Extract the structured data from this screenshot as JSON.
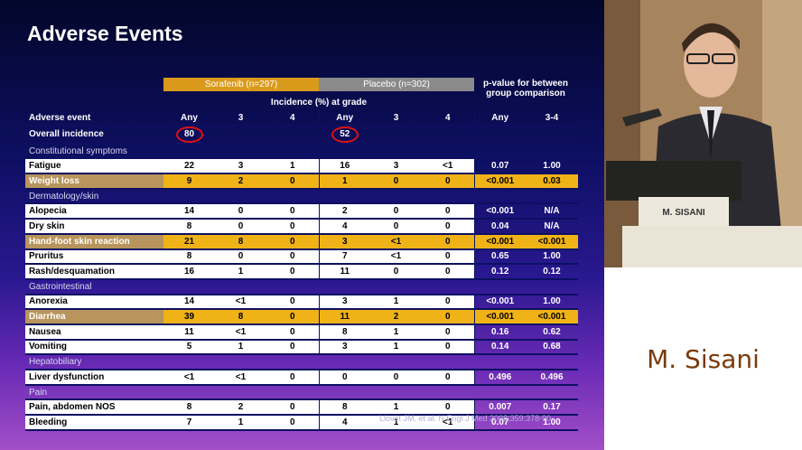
{
  "slide": {
    "title": "Adverse Events",
    "group_sorafenib": "Sorafenib (n=297)",
    "group_placebo": "Placebo (n=302)",
    "pvalue_header": "p-value for between group comparison",
    "incidence_header": "Incidence (%) at grade",
    "columns": [
      "Adverse event",
      "Any",
      "3",
      "4",
      "Any",
      "3",
      "4",
      "Any",
      "3-4"
    ],
    "overall": {
      "label": "Overall incidence",
      "sorafenib_any": "80",
      "placebo_any": "52"
    },
    "rows": [
      {
        "type": "section",
        "label": "Constitutional symptoms"
      },
      {
        "type": "row",
        "highlight": false,
        "cells": [
          "Fatigue",
          "22",
          "3",
          "1",
          "16",
          "3",
          "<1",
          "0.07",
          "1.00"
        ]
      },
      {
        "type": "row",
        "highlight": true,
        "cells": [
          "Weight loss",
          "9",
          "2",
          "0",
          "1",
          "0",
          "0",
          "<0.001",
          "0.03"
        ]
      },
      {
        "type": "section",
        "label": "Dermatology/skin"
      },
      {
        "type": "row",
        "highlight": false,
        "cells": [
          "Alopecia",
          "14",
          "0",
          "0",
          "2",
          "0",
          "0",
          "<0.001",
          "N/A"
        ]
      },
      {
        "type": "row",
        "highlight": false,
        "cells": [
          "Dry skin",
          "8",
          "0",
          "0",
          "4",
          "0",
          "0",
          "0.04",
          "N/A"
        ]
      },
      {
        "type": "row",
        "highlight": true,
        "cells": [
          "Hand-foot skin reaction",
          "21",
          "8",
          "0",
          "3",
          "<1",
          "0",
          "<0.001",
          "<0.001"
        ]
      },
      {
        "type": "row",
        "highlight": false,
        "cells": [
          "Pruritus",
          "8",
          "0",
          "0",
          "7",
          "<1",
          "0",
          "0.65",
          "1.00"
        ]
      },
      {
        "type": "row",
        "highlight": false,
        "cells": [
          "Rash/desquamation",
          "16",
          "1",
          "0",
          "11",
          "0",
          "0",
          "0.12",
          "0.12"
        ]
      },
      {
        "type": "section",
        "label": "Gastrointestinal"
      },
      {
        "type": "row",
        "highlight": false,
        "cells": [
          "Anorexia",
          "14",
          "<1",
          "0",
          "3",
          "1",
          "0",
          "<0.001",
          "1.00"
        ]
      },
      {
        "type": "row",
        "highlight": true,
        "cells": [
          "Diarrhea",
          "39",
          "8",
          "0",
          "11",
          "2",
          "0",
          "<0.001",
          "<0.001"
        ]
      },
      {
        "type": "row",
        "highlight": false,
        "cells": [
          "Nausea",
          "11",
          "<1",
          "0",
          "8",
          "1",
          "0",
          "0.16",
          "0.62"
        ]
      },
      {
        "type": "row",
        "highlight": false,
        "cells": [
          "Vomiting",
          "5",
          "1",
          "0",
          "3",
          "1",
          "0",
          "0.14",
          "0.68"
        ]
      },
      {
        "type": "section",
        "label": "Hepatobiliary"
      },
      {
        "type": "row",
        "highlight": false,
        "cells": [
          "Liver dysfunction",
          "<1",
          "<1",
          "0",
          "0",
          "0",
          "0",
          "0.496",
          "0.496"
        ]
      },
      {
        "type": "section",
        "label": "Pain"
      },
      {
        "type": "row",
        "highlight": false,
        "cells": [
          "Pain, abdomen NOS",
          "8",
          "2",
          "0",
          "8",
          "1",
          "0",
          "0.007",
          "0.17"
        ]
      },
      {
        "type": "row",
        "highlight": false,
        "cells": [
          "Bleeding",
          "7",
          "1",
          "0",
          "4",
          "1",
          "<1",
          "0.07",
          "1.00"
        ]
      }
    ],
    "citation": "Llovet JM, et al. N Engl J Med 2008;359:378-90"
  },
  "speaker": {
    "nameplate": "M. SISANI",
    "caption": "M. Sisani"
  },
  "colors": {
    "highlight": "#f0b317",
    "circle": "#e01010",
    "caption_text": "#7a3a0b"
  }
}
